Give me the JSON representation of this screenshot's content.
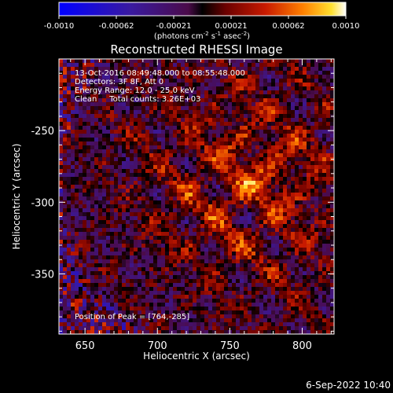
{
  "chart_data": {
    "type": "heatmap",
    "title": "Reconstructed RHESSI Image",
    "xlabel": "Heliocentric X (arcsec)",
    "ylabel": "Heliocentric Y (arcsec)",
    "x_ticks": [
      650,
      700,
      750,
      800
    ],
    "y_ticks": [
      -250,
      -300,
      -350
    ],
    "xlim": [
      632,
      822
    ],
    "ylim": [
      -392,
      -200
    ],
    "colorbar": {
      "ticks": [
        "-0.0010",
        "-0.00062",
        "-0.00021",
        "0.00021",
        "0.00062",
        "0.0010"
      ],
      "range": [
        -0.001,
        0.001
      ],
      "unit_parts": [
        "(photons cm",
        "-2",
        " s",
        "-1",
        " asec",
        "-2",
        ")"
      ]
    },
    "annotations": [
      "13-Oct-2016 08:49:48.000 to 08:55:48.000",
      "Detectors: 3F 8F, Att 0",
      "Energy Range: 12.0 - 25.0 keV",
      "Clean     Total counts: 3.26E+03"
    ],
    "peak_label": "Position of Peak = [764,-285]",
    "peak": [
      764,
      -285
    ],
    "timestamp": "6-Sep-2022 10:40"
  }
}
